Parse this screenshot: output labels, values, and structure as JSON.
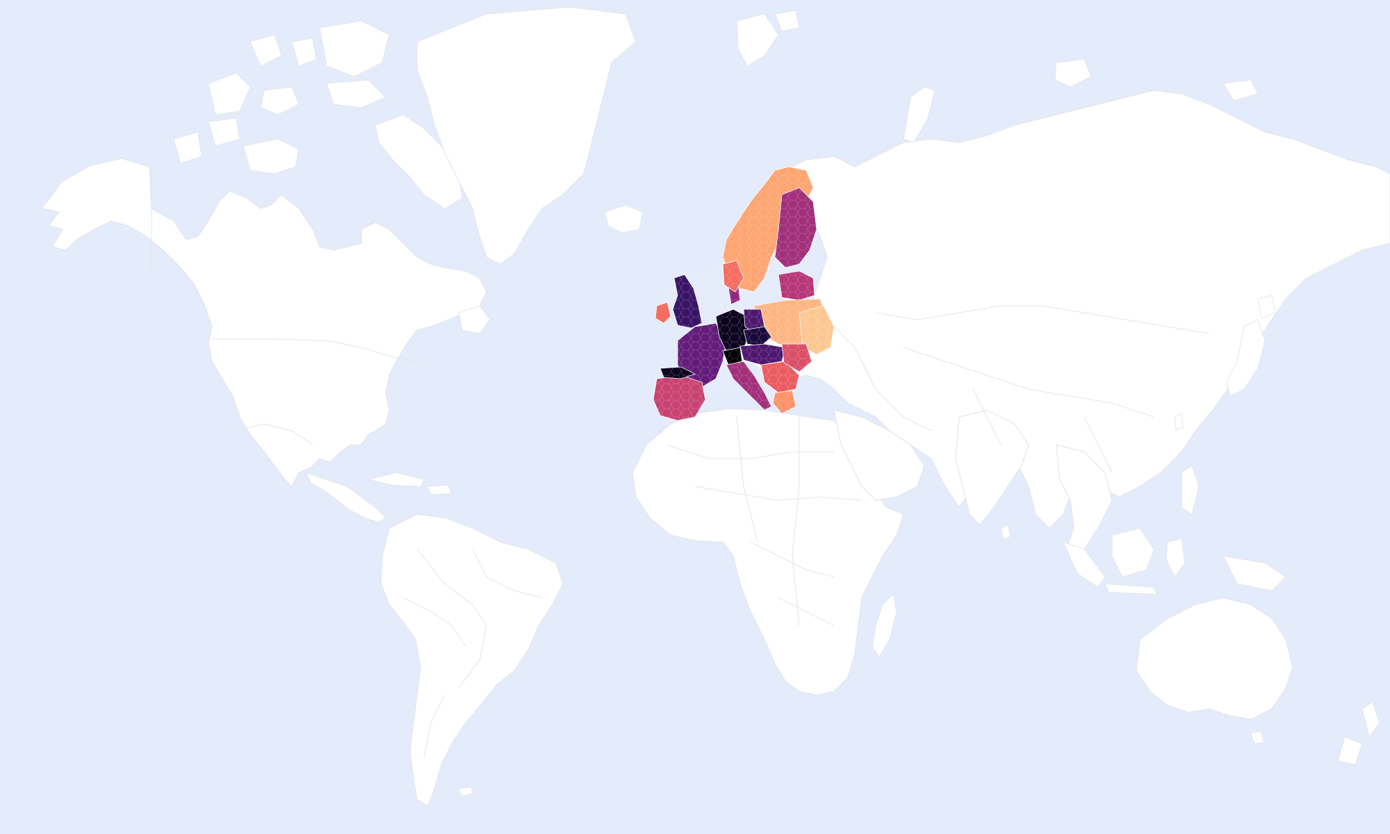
{
  "map": {
    "colors": {
      "ocean": "#e4ebfa",
      "land": "#ffffff",
      "border": "#e3e6ec",
      "region_outline": "#ffffff"
    },
    "colorscale": {
      "name": "magma",
      "stops": [
        "#000004",
        "#2c115f",
        "#721f81",
        "#b73779",
        "#f1605d",
        "#fe9f6d",
        "#fcd8a4"
      ]
    },
    "data_regions": [
      {
        "id": "scandinavia",
        "level": 0.15
      },
      {
        "id": "norway-south",
        "level": 0.3
      },
      {
        "id": "finland",
        "level": 0.55
      },
      {
        "id": "baltic",
        "level": 0.5
      },
      {
        "id": "poland-east",
        "level": 0.1
      },
      {
        "id": "ukraine-belarus",
        "level": 0.05
      },
      {
        "id": "uk",
        "level": 0.8
      },
      {
        "id": "ireland",
        "level": 0.3
      },
      {
        "id": "france",
        "level": 0.7
      },
      {
        "id": "benelux-germany",
        "level": 0.95
      },
      {
        "id": "germany-east",
        "level": 0.75
      },
      {
        "id": "czech",
        "level": 0.9
      },
      {
        "id": "austria-hungary",
        "level": 0.75
      },
      {
        "id": "switzerland",
        "level": 1.0
      },
      {
        "id": "italy",
        "level": 0.55
      },
      {
        "id": "balkans",
        "level": 0.35
      },
      {
        "id": "romania",
        "level": 0.4
      },
      {
        "id": "iberia",
        "level": 0.45
      },
      {
        "id": "iberia-north",
        "level": 0.95
      },
      {
        "id": "greece",
        "level": 0.2
      },
      {
        "id": "denmark",
        "level": 0.6
      }
    ]
  }
}
